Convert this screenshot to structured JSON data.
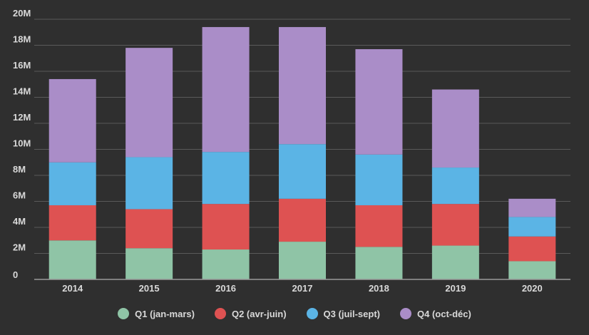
{
  "chart_data": {
    "type": "bar",
    "stacked": true,
    "categories": [
      "2014",
      "2015",
      "2016",
      "2017",
      "2018",
      "2019",
      "2020"
    ],
    "series": [
      {
        "name": "Q1 (jan-mars)",
        "color": "#8fc4a6",
        "values": [
          3.0,
          2.4,
          2.3,
          2.9,
          2.5,
          2.6,
          1.4
        ]
      },
      {
        "name": "Q2 (avr-juin)",
        "color": "#de5252",
        "values": [
          2.7,
          3.0,
          3.5,
          3.3,
          3.2,
          3.2,
          1.9
        ]
      },
      {
        "name": "Q3 (juil-sept)",
        "color": "#5bb4e5",
        "values": [
          3.3,
          4.0,
          4.0,
          4.2,
          3.9,
          2.8,
          1.5
        ]
      },
      {
        "name": "Q4 (oct-déc)",
        "color": "#aa8dc8",
        "values": [
          6.4,
          8.4,
          9.6,
          9.0,
          8.1,
          6.0,
          1.4
        ]
      }
    ],
    "ylim": [
      0,
      20
    ],
    "yticks": [
      {
        "value": 0,
        "label": "0"
      },
      {
        "value": 2,
        "label": "2M"
      },
      {
        "value": 4,
        "label": "4M"
      },
      {
        "value": 6,
        "label": "6M"
      },
      {
        "value": 8,
        "label": "8M"
      },
      {
        "value": 10,
        "label": "10M"
      },
      {
        "value": 12,
        "label": "12M"
      },
      {
        "value": 14,
        "label": "14M"
      },
      {
        "value": 16,
        "label": "16M"
      },
      {
        "value": 18,
        "label": "18M"
      },
      {
        "value": 20,
        "label": "20M"
      }
    ],
    "grid": true,
    "legend_position": "bottom"
  }
}
